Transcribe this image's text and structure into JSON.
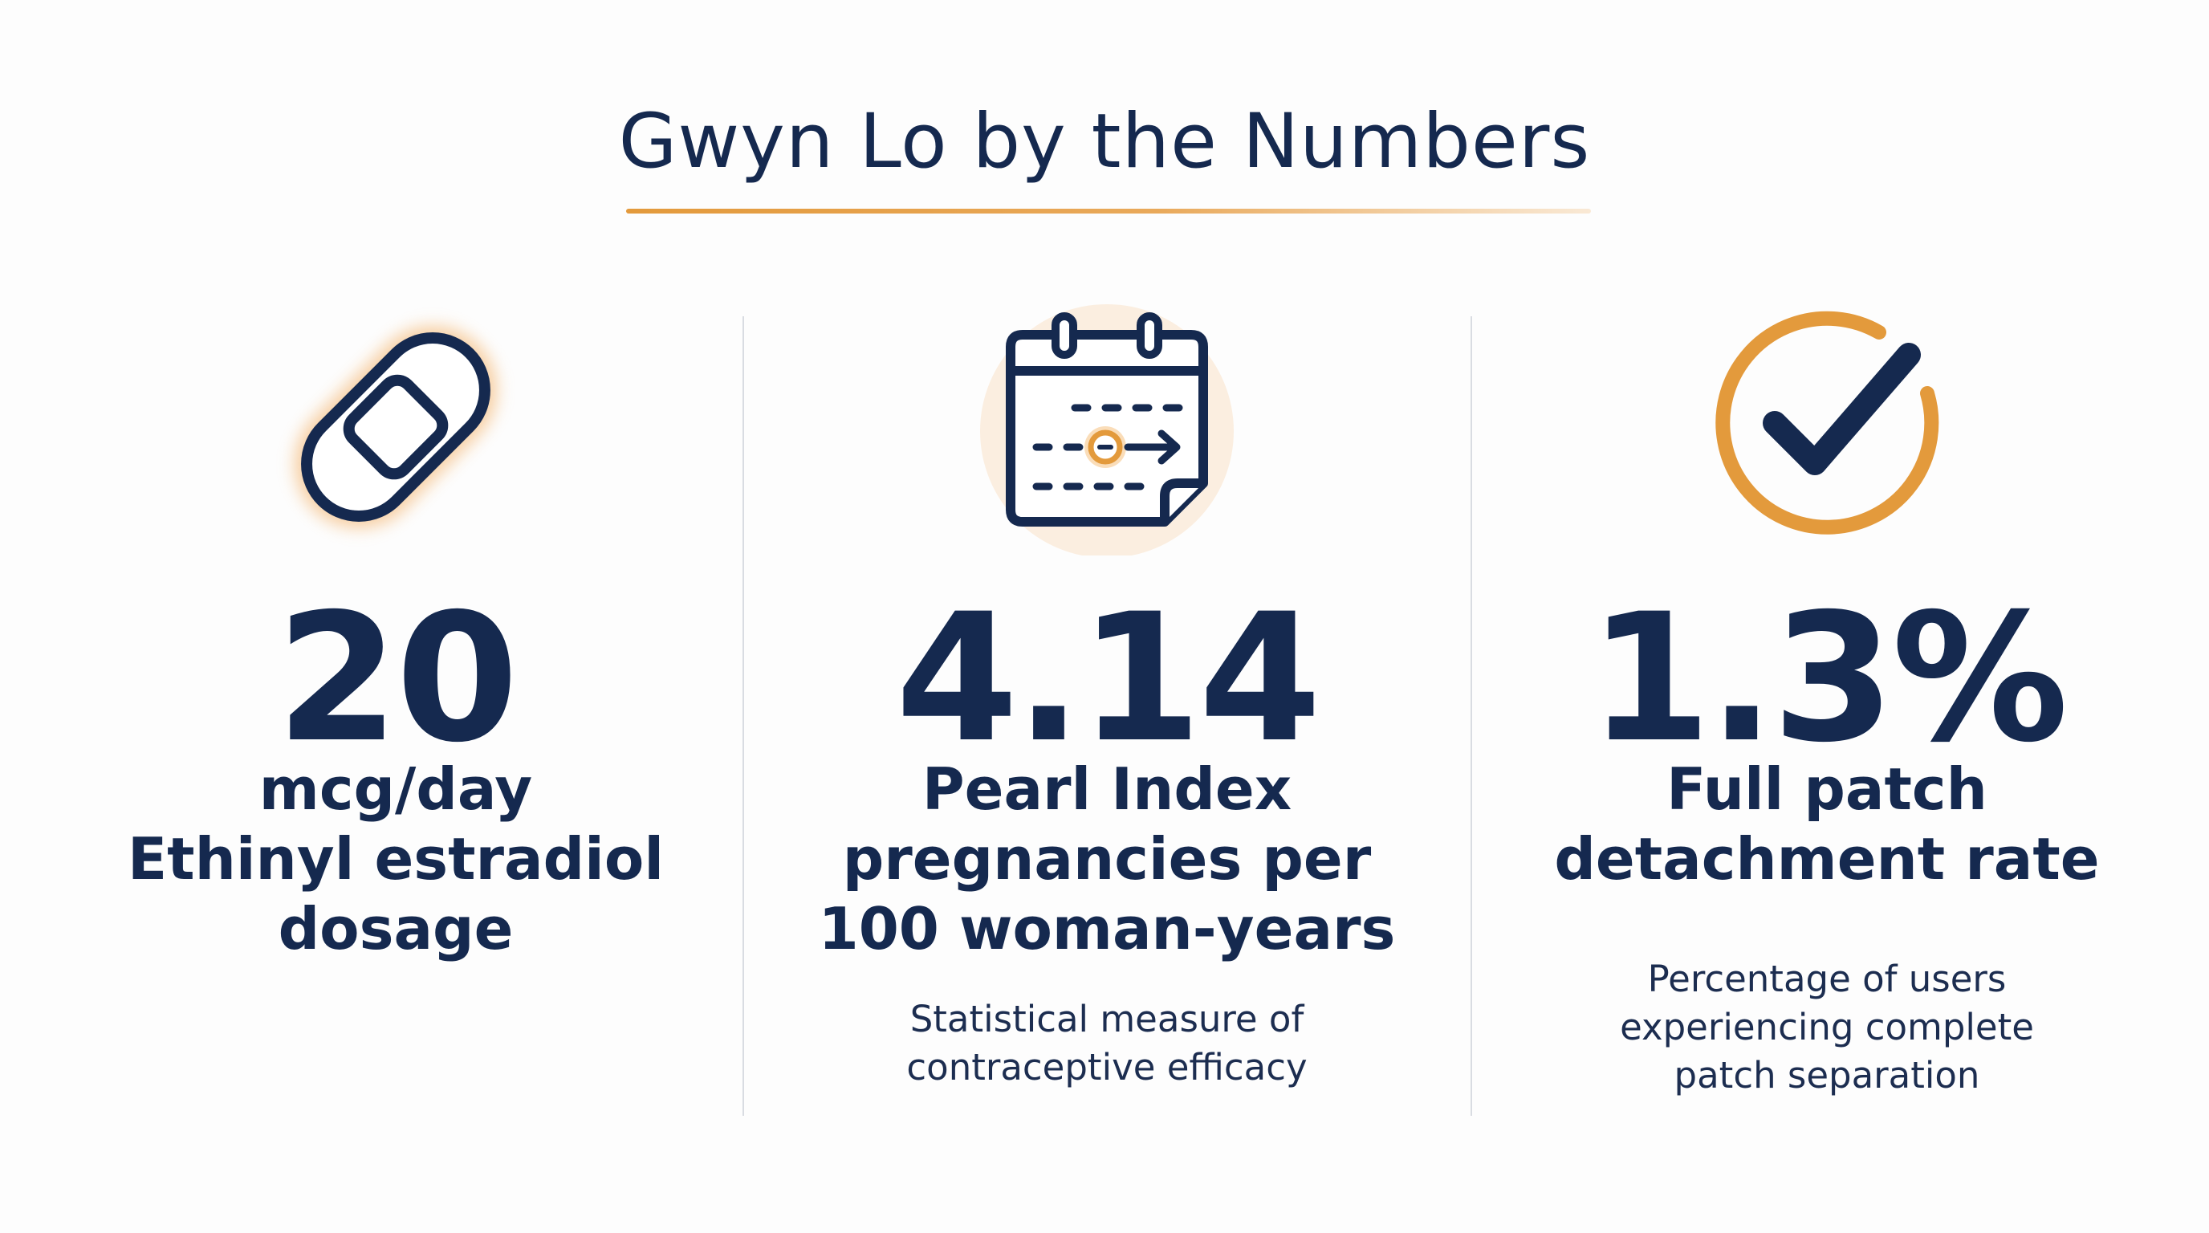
{
  "title": "Gwyn Lo by the Numbers",
  "colors": {
    "navy": "#15294f",
    "accent_orange": "#e39a3c",
    "divider": "#d9dce2"
  },
  "stats": [
    {
      "icon": "bandage-patch-icon",
      "value": "20",
      "label_lines": [
        "mcg/day",
        "Ethinyl estradiol",
        "dosage"
      ],
      "desc_lines": []
    },
    {
      "icon": "calendar-icon",
      "value": "4.14",
      "label_lines": [
        "Pearl Index",
        "pregnancies per",
        "100 woman-years"
      ],
      "desc_lines": [
        "Statistical measure of",
        "contraceptive efficacy"
      ]
    },
    {
      "icon": "check-circle-icon",
      "value": "1.3%",
      "label_lines": [
        "Full patch",
        "detachment rate"
      ],
      "desc_lines": [
        "Percentage of users",
        "experiencing complete",
        "patch separation"
      ]
    }
  ]
}
